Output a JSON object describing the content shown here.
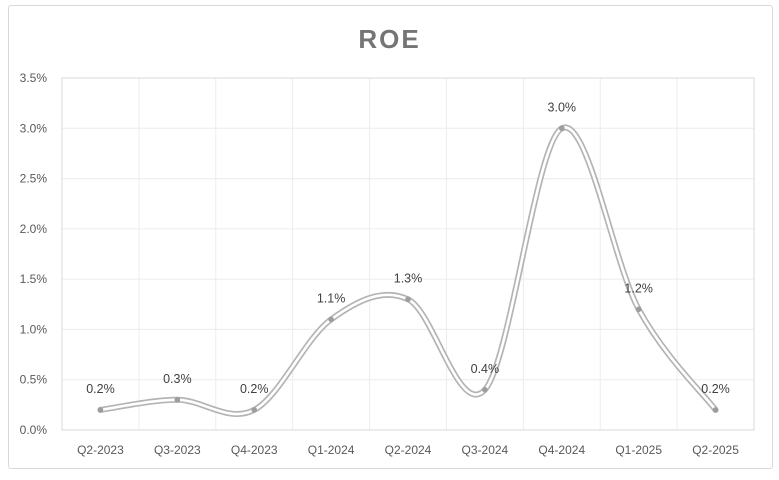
{
  "chart_data": {
    "type": "line",
    "title": "ROE",
    "categories": [
      "Q2-2023",
      "Q3-2023",
      "Q4-2023",
      "Q1-2024",
      "Q2-2024",
      "Q3-2024",
      "Q4-2024",
      "Q1-2025",
      "Q2-2025"
    ],
    "series": [
      {
        "name": "ROE",
        "values": [
          0.2,
          0.3,
          0.2,
          1.1,
          1.3,
          0.4,
          3.0,
          1.2,
          0.2
        ],
        "data_labels": [
          "0.2%",
          "0.3%",
          "0.2%",
          "1.1%",
          "1.3%",
          "0.4%",
          "3.0%",
          "1.2%",
          "0.2%"
        ]
      }
    ],
    "unit": "%",
    "ylim": [
      0,
      3.5
    ],
    "ytick_step": 0.5,
    "ytick_labels": [
      "0.0%",
      "0.5%",
      "1.0%",
      "1.5%",
      "2.0%",
      "2.5%",
      "3.0%",
      "3.5%"
    ],
    "xlabel": "",
    "ylabel": "",
    "smooth": true,
    "grid": true,
    "markers": true,
    "legend_position": "none",
    "colors": {
      "background": "#ffffff",
      "frame_border": "#d9d9d9",
      "plot_border": "#d9d9d9",
      "gridline": "#ececec",
      "line_outer": "#b4b4b4",
      "line_inner": "#ffffff",
      "marker": "#9d9d9d",
      "title_text": "#757575",
      "axis_text": "#595959",
      "data_label_text": "#404040"
    }
  }
}
